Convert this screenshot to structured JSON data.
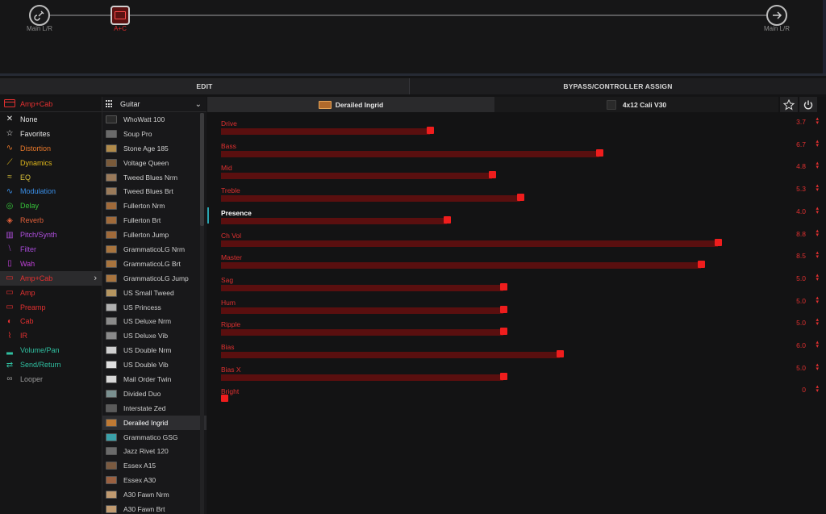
{
  "flow": {
    "input_label": "Main L/R",
    "block_label": "A+C",
    "output_label": "Main L/R"
  },
  "tabs": {
    "edit": "EDIT",
    "bypass": "BYPASS/CONTROLLER ASSIGN"
  },
  "categories": {
    "header": "Amp+Cab",
    "items": [
      {
        "label": "None",
        "color": "#e6e6e6",
        "icon": "x-icon"
      },
      {
        "label": "Favorites",
        "color": "#e6e6e6",
        "icon": "star-icon"
      },
      {
        "label": "Distortion",
        "color": "#e8782a",
        "icon": "distortion-icon"
      },
      {
        "label": "Dynamics",
        "color": "#e0b81c",
        "icon": "dynamics-icon"
      },
      {
        "label": "EQ",
        "color": "#d8c03a",
        "icon": "eq-icon"
      },
      {
        "label": "Modulation",
        "color": "#3a8ee6",
        "icon": "modulation-icon"
      },
      {
        "label": "Delay",
        "color": "#36c23a",
        "icon": "delay-icon"
      },
      {
        "label": "Reverb",
        "color": "#e2603a",
        "icon": "reverb-icon"
      },
      {
        "label": "Pitch/Synth",
        "color": "#b14fe0",
        "icon": "pitch-icon"
      },
      {
        "label": "Filter",
        "color": "#a64ad6",
        "icon": "filter-icon"
      },
      {
        "label": "Wah",
        "color": "#c040d8",
        "icon": "wah-icon"
      },
      {
        "label": "Amp+Cab",
        "color": "#e43030",
        "icon": "ampcab-icon",
        "selected": true
      },
      {
        "label": "Amp",
        "color": "#e43030",
        "icon": "amp-icon"
      },
      {
        "label": "Preamp",
        "color": "#e43030",
        "icon": "preamp-icon"
      },
      {
        "label": "Cab",
        "color": "#e43030",
        "icon": "cab-icon"
      },
      {
        "label": "IR",
        "color": "#e43030",
        "icon": "ir-icon"
      },
      {
        "label": "Volume/Pan",
        "color": "#2fbfa0",
        "icon": "volume-icon"
      },
      {
        "label": "Send/Return",
        "color": "#2fbfa0",
        "icon": "send-icon"
      },
      {
        "label": "Looper",
        "color": "#9a9a9a",
        "icon": "looper-icon"
      }
    ]
  },
  "models": {
    "header": "Guitar",
    "items": [
      {
        "label": "WhoWatt 100",
        "thumb": "#2a2a2a"
      },
      {
        "label": "Soup Pro",
        "thumb": "#6a6a6a"
      },
      {
        "label": "Stone Age 185",
        "thumb": "#b08a4a"
      },
      {
        "label": "Voltage Queen",
        "thumb": "#7a5a3a"
      },
      {
        "label": "Tweed Blues Nrm",
        "thumb": "#9a7a5a"
      },
      {
        "label": "Tweed Blues Brt",
        "thumb": "#9a7a5a"
      },
      {
        "label": "Fullerton Nrm",
        "thumb": "#a06a3a"
      },
      {
        "label": "Fullerton Brt",
        "thumb": "#a06a3a"
      },
      {
        "label": "Fullerton Jump",
        "thumb": "#a06a3a"
      },
      {
        "label": "GrammaticoLG Nrm",
        "thumb": "#a8743e"
      },
      {
        "label": "GrammaticoLG Brt",
        "thumb": "#a8743e"
      },
      {
        "label": "GrammaticoLG Jump",
        "thumb": "#a8743e"
      },
      {
        "label": "US Small Tweed",
        "thumb": "#b59560"
      },
      {
        "label": "US Princess",
        "thumb": "#b0b0b0"
      },
      {
        "label": "US Deluxe Nrm",
        "thumb": "#8a8a8a"
      },
      {
        "label": "US Deluxe Vib",
        "thumb": "#8a8a8a"
      },
      {
        "label": "US Double Nrm",
        "thumb": "#cfcfcf"
      },
      {
        "label": "US Double Vib",
        "thumb": "#e0e0e0"
      },
      {
        "label": "Mail Order Twin",
        "thumb": "#d8d8d8"
      },
      {
        "label": "Divided Duo",
        "thumb": "#7a9090"
      },
      {
        "label": "Interstate Zed",
        "thumb": "#5a5a5a"
      },
      {
        "label": "Derailed Ingrid",
        "thumb": "#c07a34",
        "selected": true
      },
      {
        "label": "Grammatico GSG",
        "thumb": "#3aa0a8"
      },
      {
        "label": "Jazz Rivet 120",
        "thumb": "#6a6a6a"
      },
      {
        "label": "Essex A15",
        "thumb": "#7a5a40"
      },
      {
        "label": "Essex A30",
        "thumb": "#9a6040"
      },
      {
        "label": "A30 Fawn Nrm",
        "thumb": "#c09a70"
      },
      {
        "label": "A30 Fawn Brt",
        "thumb": "#c09a70"
      }
    ]
  },
  "editor": {
    "amp_tab": "Derailed Ingrid",
    "cab_tab": "4x12 Cali V30",
    "params": [
      {
        "name": "Drive",
        "value": "3.7",
        "level": 0.37
      },
      {
        "name": "Bass",
        "value": "6.7",
        "level": 0.67
      },
      {
        "name": "Mid",
        "value": "4.8",
        "level": 0.48
      },
      {
        "name": "Treble",
        "value": "5.3",
        "level": 0.53
      },
      {
        "name": "Presence",
        "value": "4.0",
        "level": 0.4,
        "active": true
      },
      {
        "name": "Ch Vol",
        "value": "8.8",
        "level": 0.88
      },
      {
        "name": "Master",
        "value": "8.5",
        "level": 0.85
      },
      {
        "name": "Sag",
        "value": "5.0",
        "level": 0.5
      },
      {
        "name": "Hum",
        "value": "5.0",
        "level": 0.5
      },
      {
        "name": "Ripple",
        "value": "5.0",
        "level": 0.5
      },
      {
        "name": "Bias",
        "value": "6.0",
        "level": 0.6
      },
      {
        "name": "Bias X",
        "value": "5.0",
        "level": 0.5
      },
      {
        "name": "Bright",
        "value": "0",
        "level": 0.0
      }
    ]
  },
  "colors": {
    "accent": "#e43030",
    "track": "#5a0f0f",
    "knob": "#ef1d1d"
  }
}
